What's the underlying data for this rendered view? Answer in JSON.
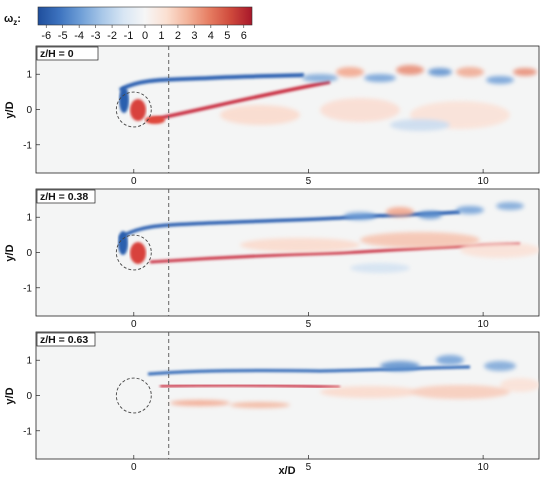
{
  "colorbar": {
    "label": "ω",
    "label_sub": "z",
    "label_suffix": ":",
    "ticks": [
      "-6",
      "-5",
      "-4",
      "-3",
      "-2",
      "-1",
      "0",
      "1",
      "2",
      "3",
      "4",
      "5",
      "6"
    ],
    "range": [
      -6.5,
      6.5
    ],
    "colors": [
      "#1f4e9c",
      "#3d73bf",
      "#6f9fd7",
      "#a8c7e8",
      "#d8e6f4",
      "#f6f6f6",
      "#fbe0d2",
      "#f3b39a",
      "#e67d62",
      "#cf4a3c",
      "#a8172a"
    ]
  },
  "axes": {
    "xlabel": "x/D",
    "ylabel": "y/D",
    "xlim": [
      -2.8,
      11.6
    ],
    "ylim": [
      -1.8,
      1.8
    ],
    "xticks": [
      0,
      5,
      10
    ],
    "yticks": [
      1,
      0,
      -1
    ],
    "xtick_labels": [
      "0",
      "5",
      "10"
    ],
    "ytick_labels": [
      "1",
      "0",
      "-1"
    ],
    "dashed_line_x": 1.0,
    "cylinder": {
      "cx": 0,
      "cy": 0,
      "r": 0.5
    }
  },
  "panels": [
    {
      "title": "z/H = 0"
    },
    {
      "title": "z/H = 0.38"
    },
    {
      "title": "z/H = 0.63"
    }
  ]
}
